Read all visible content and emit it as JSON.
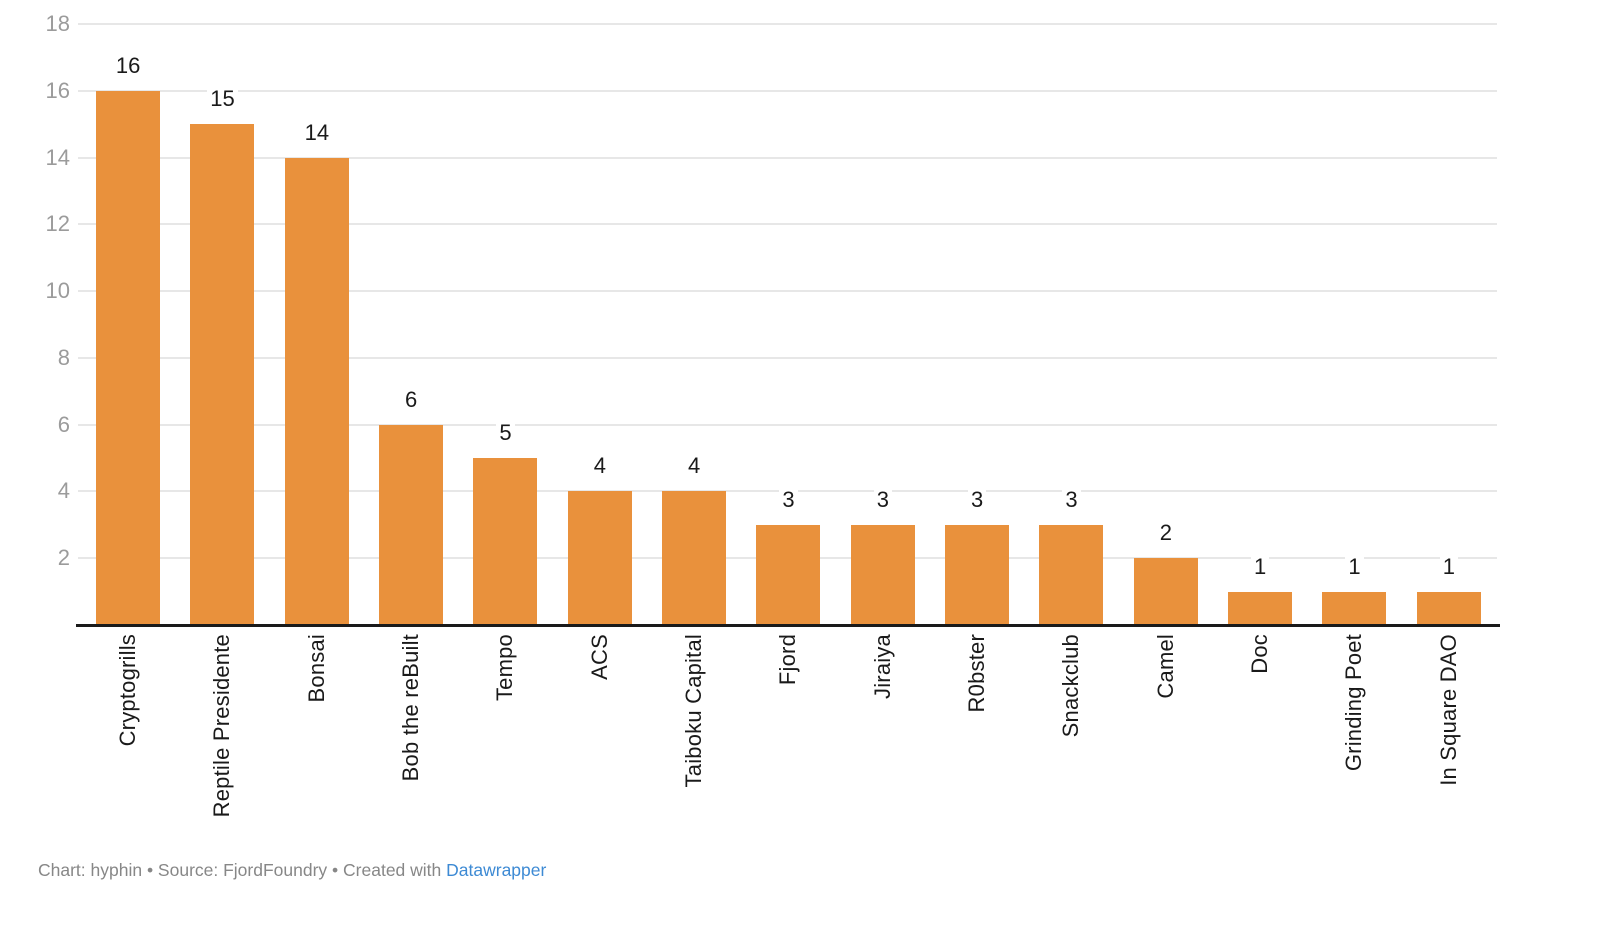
{
  "chart_data": {
    "type": "bar",
    "title": "",
    "xlabel": "",
    "ylabel": "",
    "categories": [
      "Cryptogrills",
      "Reptile Presidente",
      "Bonsai",
      "Bob the reBuilt",
      "Tempo",
      "ACS",
      "Taiboku Capital",
      "Fjord",
      "Jiraiya",
      "R0bster",
      "Snackclub",
      "Camel",
      "Doc",
      "Grinding Poet",
      "In Square DAO"
    ],
    "values": [
      16,
      15,
      14,
      6,
      5,
      4,
      4,
      3,
      3,
      3,
      3,
      2,
      1,
      1,
      1
    ],
    "ylim": [
      0,
      18
    ],
    "yticks": [
      2,
      4,
      6,
      8,
      10,
      12,
      14,
      16,
      18
    ],
    "grid": true,
    "legend": "none",
    "value_labels_shown": true
  },
  "colors": {
    "bar": "#E9913C",
    "gridline": "#E7E7E7",
    "axis_line": "#1A1A1A",
    "y_tick_label": "#9B9B9B",
    "value_label": "#1A1A1A",
    "category_label": "#1A1A1A",
    "footer_text": "#878787",
    "footer_link": "#3D8AD4",
    "background": "#FFFFFF"
  },
  "footer": {
    "text": "Chart: hyphin • Source: FjordFoundry • Created with ",
    "link_label": "Datawrapper"
  }
}
